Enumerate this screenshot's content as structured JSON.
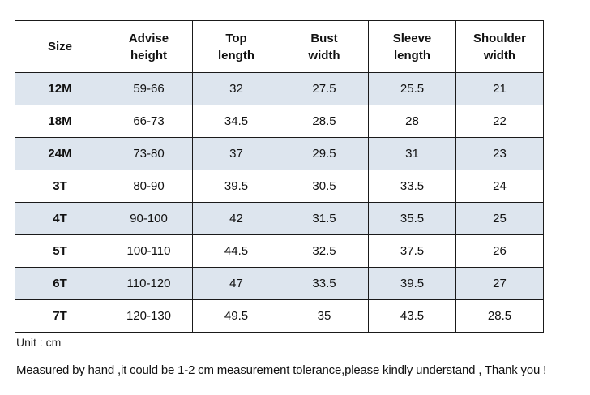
{
  "table": {
    "headers": {
      "size": "Size",
      "height_line1": "Advise",
      "height_line2": "height",
      "top_line1": "Top",
      "top_line2": "length",
      "bust_line1": "Bust",
      "bust_line2": "width",
      "sleeve_line1": "Sleeve",
      "sleeve_line2": "length",
      "shoulder_line1": "Shoulder",
      "shoulder_line2": "width"
    },
    "rows": [
      {
        "size": "12M",
        "height": "59-66",
        "top": "32",
        "bust": "27.5",
        "sleeve": "25.5",
        "shoulder": "21"
      },
      {
        "size": "18M",
        "height": "66-73",
        "top": "34.5",
        "bust": "28.5",
        "sleeve": "28",
        "shoulder": "22"
      },
      {
        "size": "24M",
        "height": "73-80",
        "top": "37",
        "bust": "29.5",
        "sleeve": "31",
        "shoulder": "23"
      },
      {
        "size": "3T",
        "height": "80-90",
        "top": "39.5",
        "bust": "30.5",
        "sleeve": "33.5",
        "shoulder": "24"
      },
      {
        "size": "4T",
        "height": "90-100",
        "top": "42",
        "bust": "31.5",
        "sleeve": "35.5",
        "shoulder": "25"
      },
      {
        "size": "5T",
        "height": "100-110",
        "top": "44.5",
        "bust": "32.5",
        "sleeve": "37.5",
        "shoulder": "26"
      },
      {
        "size": "6T",
        "height": "110-120",
        "top": "47",
        "bust": "33.5",
        "sleeve": "39.5",
        "shoulder": "27"
      },
      {
        "size": "7T",
        "height": "120-130",
        "top": "49.5",
        "bust": "35",
        "sleeve": "43.5",
        "shoulder": "28.5"
      }
    ]
  },
  "notes": {
    "unit": "Unit : cm",
    "tolerance": "Measured by hand ,it could be 1-2 cm measurement tolerance,please kindly understand , Thank you !"
  },
  "colors": {
    "shaded_row": "#dde5ee",
    "border": "#1a1a1a"
  }
}
